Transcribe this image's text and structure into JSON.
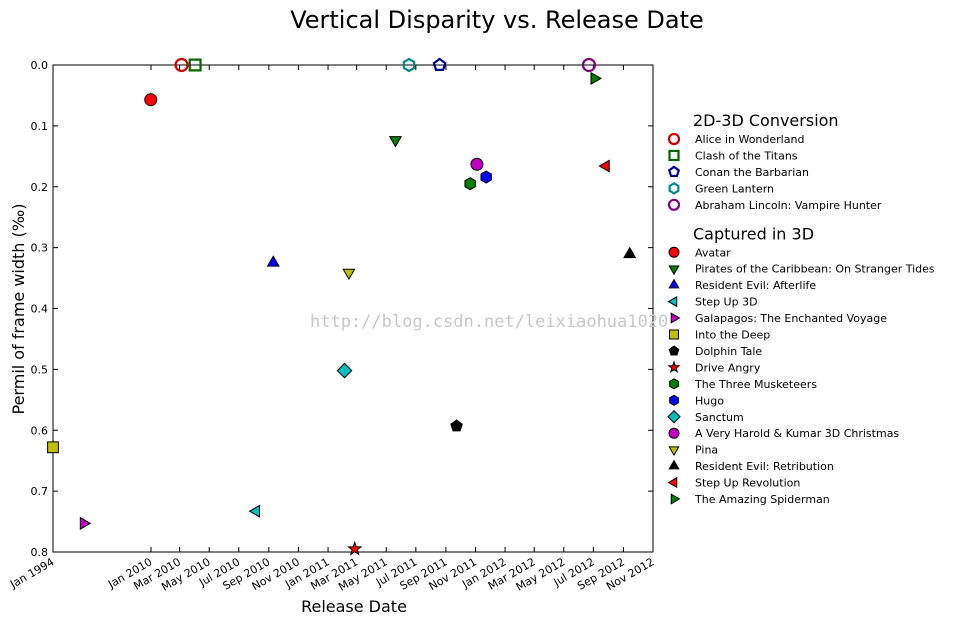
{
  "watermark": "http://blog.csdn.net/leixiaohua1020",
  "chart_data": {
    "type": "scatter",
    "title": "Vertical Disparity vs. Release Date",
    "xlabel": "Release Date",
    "ylabel": "Permil of frame width (‰)",
    "ylim": [
      0.0,
      0.8
    ],
    "y_inverted": true,
    "y_ticks": [
      "0.0",
      "0.1",
      "0.2",
      "0.3",
      "0.4",
      "0.5",
      "0.6",
      "0.7",
      "0.8"
    ],
    "x_ticks": [
      "Jan 1994",
      "Jan 2010",
      "Mar 2010",
      "May 2010",
      "Jul 2010",
      "Sep 2010",
      "Nov 2010",
      "Jan 2011",
      "Mar 2011",
      "May 2011",
      "Jul 2011",
      "Sep 2011",
      "Nov 2011",
      "Jan 2012",
      "Mar 2012",
      "May 2012",
      "Jul 2012",
      "Sep 2012",
      "Nov 2012"
    ],
    "legend_placement": "right",
    "grid": false,
    "groups": [
      {
        "heading": "2D-3D Conversion",
        "series": [
          {
            "name": "Alice in Wonderland",
            "marker": "circle",
            "filled": false,
            "color": "#cc0000",
            "x": "2010-03-05",
            "y": 0.0
          },
          {
            "name": "Clash of the Titans",
            "marker": "square",
            "filled": false,
            "color": "#006400",
            "x": "2010-04-02",
            "y": 0.0
          },
          {
            "name": "Conan the Barbarian",
            "marker": "pentagon",
            "filled": false,
            "color": "#00008b",
            "x": "2011-08-19",
            "y": 0.0
          },
          {
            "name": "Green Lantern",
            "marker": "hexagon",
            "filled": false,
            "color": "#008b8b",
            "x": "2011-06-17",
            "y": 0.0
          },
          {
            "name": "Abraham Lincoln: Vampire Hunter",
            "marker": "circle",
            "filled": false,
            "color": "#800080",
            "x": "2012-06-22",
            "y": 0.0
          }
        ]
      },
      {
        "heading": "Captured in 3D",
        "series": [
          {
            "name": "Avatar",
            "marker": "circle",
            "filled": true,
            "color": "#ff0000",
            "x": "2009-12-18",
            "y": 0.057
          },
          {
            "name": "Pirates of the Caribbean: On Stranger Tides",
            "marker": "triangle-down",
            "filled": true,
            "color": "#008000",
            "x": "2011-05-20",
            "y": 0.123
          },
          {
            "name": "Resident Evil: Afterlife",
            "marker": "triangle-up",
            "filled": true,
            "color": "#0000ff",
            "x": "2010-09-10",
            "y": 0.325
          },
          {
            "name": "Step Up 3D",
            "marker": "triangle-left",
            "filled": true,
            "color": "#00bfbf",
            "x": "2010-08-06",
            "y": 0.733
          },
          {
            "name": "Galapagos: The Enchanted Voyage",
            "marker": "triangle-right",
            "filled": true,
            "color": "#bf00bf",
            "x": "1999-01-01",
            "y": 0.753
          },
          {
            "name": "Into the Deep",
            "marker": "square",
            "filled": true,
            "color": "#bfbf00",
            "x": "1994-01-01",
            "y": 0.628
          },
          {
            "name": "Dolphin Tale",
            "marker": "pentagon",
            "filled": true,
            "color": "#000000",
            "x": "2011-09-23",
            "y": 0.593
          },
          {
            "name": "Drive Angry",
            "marker": "star",
            "filled": true,
            "color": "#ff0000",
            "x": "2011-02-25",
            "y": 0.795
          },
          {
            "name": "The Three Musketeers",
            "marker": "hexagon",
            "filled": true,
            "color": "#008000",
            "x": "2011-10-21",
            "y": 0.195
          },
          {
            "name": "Hugo",
            "marker": "hexagon",
            "filled": true,
            "color": "#0000ff",
            "x": "2011-11-23",
            "y": 0.184
          },
          {
            "name": "Sanctum",
            "marker": "diamond",
            "filled": true,
            "color": "#00bfbf",
            "x": "2011-02-04",
            "y": 0.502
          },
          {
            "name": "A Very Harold & Kumar 3D Christmas",
            "marker": "circle",
            "filled": true,
            "color": "#bf00bf",
            "x": "2011-11-04",
            "y": 0.163
          },
          {
            "name": "Pina",
            "marker": "triangle-down",
            "filled": true,
            "color": "#bfbf00",
            "x": "2011-02-13",
            "y": 0.341
          },
          {
            "name": "Resident Evil: Retribution",
            "marker": "triangle-up",
            "filled": true,
            "color": "#000000",
            "x": "2012-09-14",
            "y": 0.311
          },
          {
            "name": "Step Up Revolution",
            "marker": "triangle-left",
            "filled": true,
            "color": "#ff0000",
            "x": "2012-07-27",
            "y": 0.166
          },
          {
            "name": "The Amazing Spiderman",
            "marker": "triangle-right",
            "filled": true,
            "color": "#008000",
            "x": "2012-07-03",
            "y": 0.022
          }
        ]
      }
    ]
  }
}
